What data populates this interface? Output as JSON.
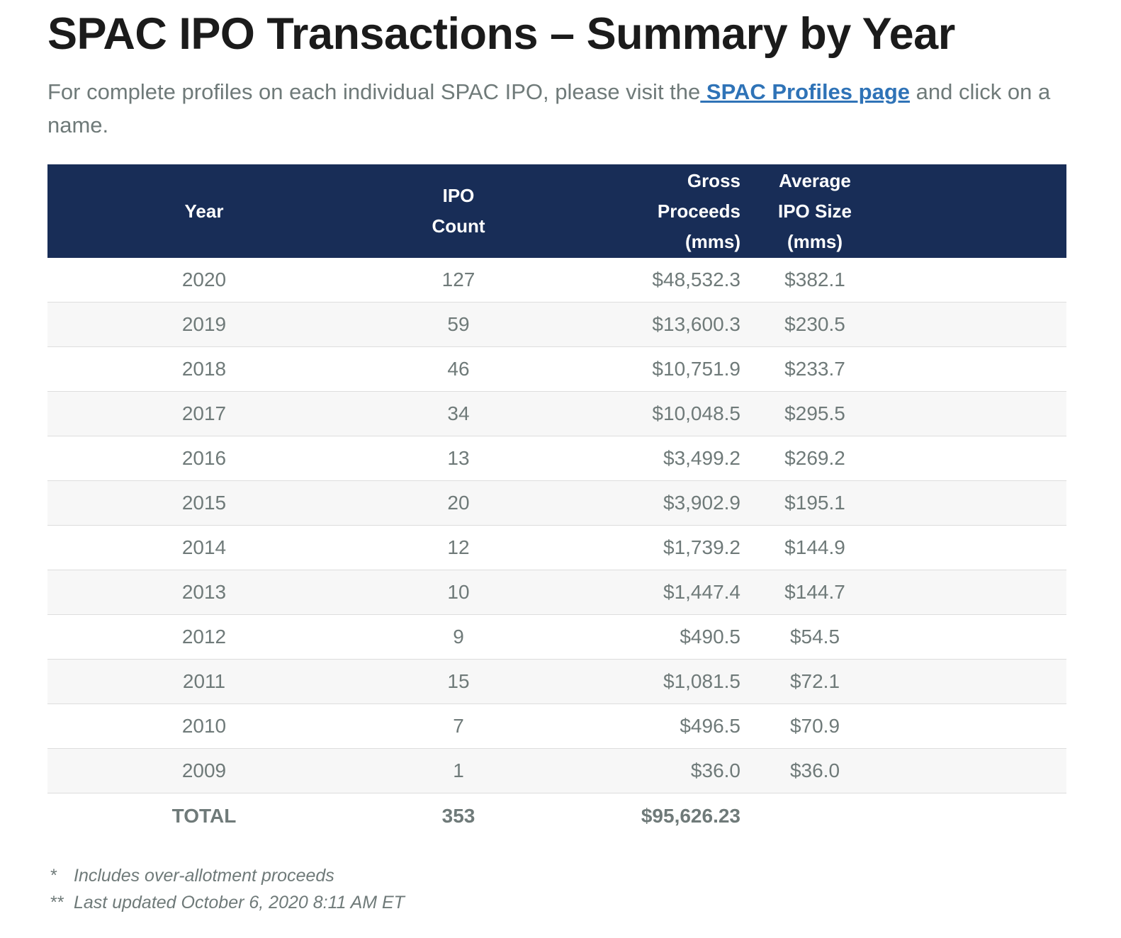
{
  "title": "SPAC IPO Transactions – Summary by Year",
  "intro": {
    "before_link": "For complete profiles on each individual SPAC IPO, please visit the",
    "link_text": " SPAC Profiles page",
    "after_link": " and click on a name."
  },
  "table": {
    "headers": {
      "year": "Year",
      "ipo_count_line1": "IPO",
      "ipo_count_line2": "Count",
      "gross_line1": "Gross",
      "gross_line2": "Proceeds",
      "gross_line3": "(mms)",
      "avg_line1": "Average",
      "avg_line2": "IPO Size",
      "avg_line3": "(mms)"
    },
    "rows": [
      {
        "year": "2020",
        "count": "127",
        "gross": "$48,532.3",
        "avg": "$382.1"
      },
      {
        "year": "2019",
        "count": "59",
        "gross": "$13,600.3",
        "avg": "$230.5"
      },
      {
        "year": "2018",
        "count": "46",
        "gross": "$10,751.9",
        "avg": "$233.7"
      },
      {
        "year": "2017",
        "count": "34",
        "gross": "$10,048.5",
        "avg": "$295.5"
      },
      {
        "year": "2016",
        "count": "13",
        "gross": "$3,499.2",
        "avg": "$269.2"
      },
      {
        "year": "2015",
        "count": "20",
        "gross": "$3,902.9",
        "avg": "$195.1"
      },
      {
        "year": "2014",
        "count": "12",
        "gross": "$1,739.2",
        "avg": "$144.9"
      },
      {
        "year": "2013",
        "count": "10",
        "gross": "$1,447.4",
        "avg": "$144.7"
      },
      {
        "year": "2012",
        "count": "9",
        "gross": "$490.5",
        "avg": "$54.5"
      },
      {
        "year": "2011",
        "count": "15",
        "gross": "$1,081.5",
        "avg": "$72.1"
      },
      {
        "year": "2010",
        "count": "7",
        "gross": "$496.5",
        "avg": "$70.9"
      },
      {
        "year": "2009",
        "count": "1",
        "gross": "$36.0",
        "avg": "$36.0"
      }
    ],
    "total": {
      "label": "TOTAL",
      "count": "353",
      "gross": "$95,626.23"
    }
  },
  "notes": [
    {
      "mark": "*",
      "text": "Includes over-allotment proceeds"
    },
    {
      "mark": "**",
      "text": "Last updated October 6, 2020 8:11 AM ET"
    }
  ],
  "colors": {
    "header_bg": "#182d57",
    "link": "#2f73b7",
    "body_text": "#6f7a79",
    "title_text": "#1b1b1b",
    "stripe": "#f7f7f7"
  }
}
